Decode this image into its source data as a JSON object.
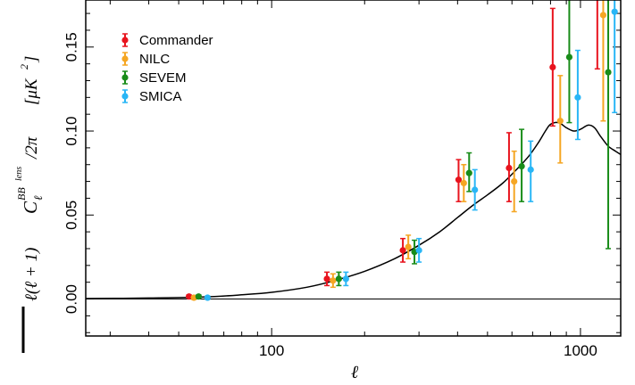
{
  "chart_data": {
    "type": "scatter",
    "title": "",
    "xlabel": "ℓ",
    "ylabel": "[ℓ(ℓ + 1)] C_ℓ^{BB lens} / 2π [μK²]",
    "ylabel_parts": {
      "prefix": "ℓ(ℓ + 1)",
      "symbol": "C",
      "sub": "ℓ",
      "sup": "BB",
      "sup2": "lens",
      "suffix": "/2π",
      "unit_open": "[μK",
      "unit_pow": "2",
      "unit_close": "]"
    },
    "xscale": "log",
    "xlim": [
      25,
      1350
    ],
    "ylim": [
      -0.022,
      0.178
    ],
    "xticks": [
      {
        "value": 100,
        "label": "100"
      },
      {
        "value": 1000,
        "label": "1000"
      }
    ],
    "yticks": [
      {
        "value": 0.0,
        "label": "0.00"
      },
      {
        "value": 0.05,
        "label": "0.05"
      },
      {
        "value": 0.1,
        "label": "0.10"
      },
      {
        "value": 0.15,
        "label": "0.15"
      }
    ],
    "legend_position": "top-left",
    "series": [
      {
        "name": "Commander",
        "color": "#e8141e",
        "points": [
          {
            "x": 54,
            "y": 0.0015,
            "lo": 0.0005,
            "hi": 0.0025
          },
          {
            "x": 151,
            "y": 0.012,
            "lo": 0.008,
            "hi": 0.016
          },
          {
            "x": 266,
            "y": 0.029,
            "lo": 0.022,
            "hi": 0.036
          },
          {
            "x": 403,
            "y": 0.071,
            "lo": 0.058,
            "hi": 0.083
          },
          {
            "x": 587,
            "y": 0.078,
            "lo": 0.058,
            "hi": 0.099
          },
          {
            "x": 813,
            "y": 0.138,
            "lo": 0.103,
            "hi": 0.173
          },
          {
            "x": 1134,
            "y": 0.19,
            "lo": 0.137,
            "hi": 0.26
          }
        ]
      },
      {
        "name": "NILC",
        "color": "#f5a623",
        "points": [
          {
            "x": 56,
            "y": 0.0008,
            "lo": -0.0002,
            "hi": 0.0018
          },
          {
            "x": 158,
            "y": 0.011,
            "lo": 0.007,
            "hi": 0.015
          },
          {
            "x": 277,
            "y": 0.031,
            "lo": 0.024,
            "hi": 0.038
          },
          {
            "x": 419,
            "y": 0.069,
            "lo": 0.058,
            "hi": 0.08
          },
          {
            "x": 610,
            "y": 0.07,
            "lo": 0.052,
            "hi": 0.088
          },
          {
            "x": 860,
            "y": 0.106,
            "lo": 0.081,
            "hi": 0.133
          },
          {
            "x": 1185,
            "y": 0.169,
            "lo": 0.106,
            "hi": 0.23
          }
        ]
      },
      {
        "name": "SEVEM",
        "color": "#198c19",
        "points": [
          {
            "x": 58,
            "y": 0.0015,
            "lo": 0.0005,
            "hi": 0.0025
          },
          {
            "x": 165,
            "y": 0.012,
            "lo": 0.008,
            "hi": 0.016
          },
          {
            "x": 290,
            "y": 0.028,
            "lo": 0.021,
            "hi": 0.035
          },
          {
            "x": 436,
            "y": 0.075,
            "lo": 0.064,
            "hi": 0.087
          },
          {
            "x": 645,
            "y": 0.079,
            "lo": 0.058,
            "hi": 0.101
          },
          {
            "x": 920,
            "y": 0.144,
            "lo": 0.105,
            "hi": 0.21
          },
          {
            "x": 1230,
            "y": 0.135,
            "lo": 0.03,
            "hi": 0.24
          }
        ]
      },
      {
        "name": "SMICA",
        "color": "#29b6f6",
        "points": [
          {
            "x": 62,
            "y": 0.0008,
            "lo": -0.0002,
            "hi": 0.0018
          },
          {
            "x": 174,
            "y": 0.012,
            "lo": 0.008,
            "hi": 0.016
          },
          {
            "x": 300,
            "y": 0.029,
            "lo": 0.022,
            "hi": 0.036
          },
          {
            "x": 455,
            "y": 0.065,
            "lo": 0.053,
            "hi": 0.077
          },
          {
            "x": 690,
            "y": 0.077,
            "lo": 0.058,
            "hi": 0.094
          },
          {
            "x": 980,
            "y": 0.12,
            "lo": 0.095,
            "hi": 0.148
          },
          {
            "x": 1290,
            "y": 0.171,
            "lo": 0.111,
            "hi": 0.23
          }
        ]
      }
    ],
    "theory_curve": {
      "color": "#000000",
      "points": [
        [
          25,
          0.0003
        ],
        [
          40,
          0.0006
        ],
        [
          60,
          0.0012
        ],
        [
          80,
          0.0025
        ],
        [
          100,
          0.004
        ],
        [
          130,
          0.007
        ],
        [
          160,
          0.011
        ],
        [
          200,
          0.0165
        ],
        [
          250,
          0.024
        ],
        [
          300,
          0.032
        ],
        [
          350,
          0.04
        ],
        [
          400,
          0.0485
        ],
        [
          450,
          0.056
        ],
        [
          500,
          0.062
        ],
        [
          560,
          0.069
        ],
        [
          620,
          0.077
        ],
        [
          680,
          0.085
        ],
        [
          730,
          0.093
        ],
        [
          770,
          0.1
        ],
        [
          800,
          0.104
        ],
        [
          850,
          0.105
        ],
        [
          900,
          0.102
        ],
        [
          950,
          0.1
        ],
        [
          1000,
          0.101
        ],
        [
          1060,
          0.1035
        ],
        [
          1110,
          0.102
        ],
        [
          1160,
          0.097
        ],
        [
          1230,
          0.091
        ],
        [
          1300,
          0.088
        ],
        [
          1350,
          0.086
        ]
      ]
    },
    "zero_line": 0.0
  }
}
